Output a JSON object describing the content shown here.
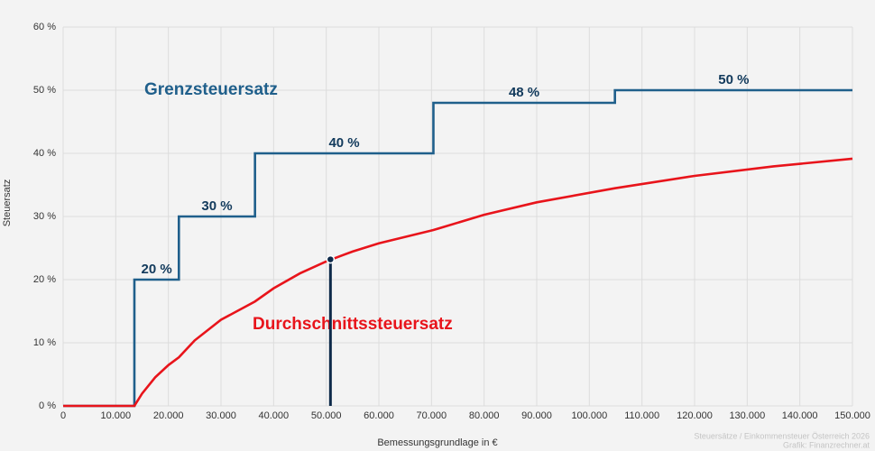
{
  "chart_data": {
    "type": "line",
    "xlabel": "Bemessungsgrundlage in €",
    "ylabel": "Steuersatz",
    "xlim": [
      0,
      150000
    ],
    "ylim": [
      0,
      60
    ],
    "xticks": [
      0,
      {
        "value": 10000,
        "label": "10.000"
      },
      {
        "value": 20000,
        "label": "20.000"
      },
      {
        "value": 30000,
        "label": "30.000"
      },
      {
        "value": 40000,
        "label": "40.000"
      },
      {
        "value": 50000,
        "label": "50.000"
      },
      {
        "value": 60000,
        "label": "60.000"
      },
      {
        "value": 70000,
        "label": "70.000"
      },
      {
        "value": 80000,
        "label": "80.000"
      },
      {
        "value": 90000,
        "label": "90.000"
      },
      {
        "value": 100000,
        "label": "100.000"
      },
      {
        "value": 110000,
        "label": "110.000"
      },
      {
        "value": 120000,
        "label": "120.000"
      },
      {
        "value": 130000,
        "label": "130.000"
      },
      {
        "value": 140000,
        "label": "140.000"
      },
      {
        "value": 150000,
        "label": "150.000"
      }
    ],
    "yticks": [
      {
        "value": 0,
        "label": "0 %"
      },
      {
        "value": 10,
        "label": "10 %"
      },
      {
        "value": 20,
        "label": "20 %"
      },
      {
        "value": 30,
        "label": "30 %"
      },
      {
        "value": 40,
        "label": "40 %"
      },
      {
        "value": 50,
        "label": "50 %"
      },
      {
        "value": 60,
        "label": "60 %"
      }
    ],
    "grid": true,
    "series": [
      {
        "name": "Grenzsteuersatz",
        "color": "#1f5f8b",
        "x": [
          0,
          13539,
          13539,
          21992,
          21992,
          36458,
          36458,
          70365,
          70365,
          104859,
          104859,
          150000
        ],
        "values": [
          0,
          0,
          20,
          20,
          30,
          30,
          40,
          40,
          48,
          48,
          50,
          50
        ],
        "step_labels": [
          "20 %",
          "30 %",
          "40 %",
          "48 %",
          "50 %"
        ]
      },
      {
        "name": "Durchschnittssteuersatz",
        "color": "#e8141b",
        "x": [
          0,
          13539,
          15000,
          17500,
          20000,
          21992,
          25000,
          30000,
          36458,
          40000,
          45000,
          50000,
          55000,
          60000,
          70365,
          80000,
          90000,
          104859,
          120000,
          135000,
          150000
        ],
        "values": [
          0,
          0,
          1.95,
          4.53,
          6.46,
          7.69,
          10.37,
          13.64,
          16.54,
          18.62,
          20.99,
          22.89,
          24.45,
          25.75,
          27.85,
          30.27,
          32.24,
          34.47,
          36.43,
          37.94,
          39.15
        ]
      }
    ],
    "marker": {
      "x": 50800,
      "value": 23.2,
      "color": "#0d2a4a"
    },
    "credits": [
      "Steuersätze / Einkommensteuer Österreich 2026",
      "Grafik: Finanzrechner.at"
    ]
  }
}
